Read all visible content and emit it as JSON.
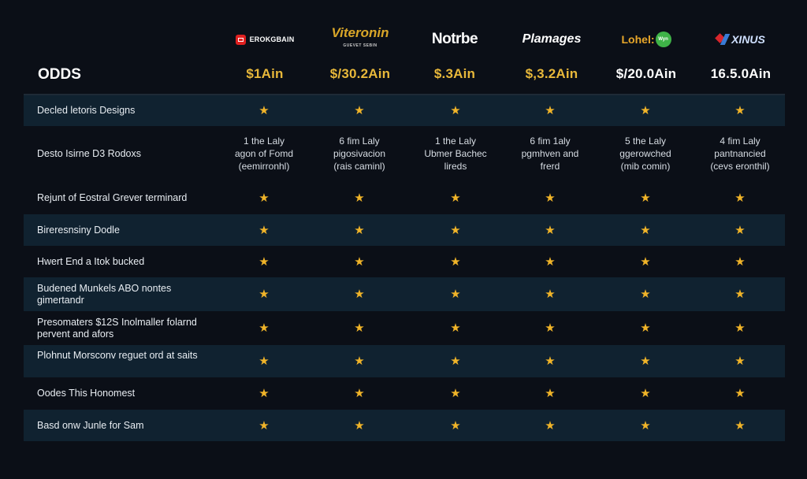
{
  "header": {
    "odds_label": "ODDS",
    "sites": [
      {
        "name": "EROKGBAIN",
        "logo_style": "red-square-badge",
        "price": "$1Ain",
        "price_color": "#e8b83a"
      },
      {
        "name": "Viteronin",
        "subtitle": "GUEVET SEBIN",
        "logo_style": "gold-italic-arc",
        "price": "$/30.2Ain",
        "price_color": "#e8b83a"
      },
      {
        "name": "Notrbe",
        "logo_style": "white-bold",
        "price": "$.3Ain",
        "price_color": "#e8b83a"
      },
      {
        "name": "Plamages",
        "logo_style": "white-italic",
        "price": "$,3.2Ain",
        "price_color": "#e8b83a"
      },
      {
        "name": "Lohel:",
        "badge": "Wyn",
        "logo_style": "orange-with-green-circle",
        "price": "$/20.0Ain",
        "price_color": "#ffffff"
      },
      {
        "name": "XINUS",
        "logo_style": "red-blue-mark",
        "price": "16.5.0Ain",
        "price_color": "#ffffff"
      }
    ]
  },
  "colors": {
    "background": "#0b0f17",
    "shaded_row": "#102230",
    "star": "#f0b429",
    "price_gold": "#e8b83a"
  },
  "rows": [
    {
      "label": "Decled letoris Designs",
      "shaded": true,
      "type": "stars",
      "cells": [
        "★",
        "★",
        "★",
        "★",
        "★",
        "★"
      ]
    },
    {
      "label": "Desto Isirne D3 Rodoxs",
      "shaded": false,
      "type": "text",
      "cells": [
        "1 the Laly\nagon of Fomd\n(eemirronhl)",
        "6 fim Laly\npigosivacion\n(rais caminl)",
        "1 the Laly\nUbmer Bachec\nlireds",
        "6 fim 1aly\npgmhven and\nfrerd",
        "5 the Laly\nggerowched\n(mib comin)",
        "4 fim Laly\npantnancied\n(cevs eronthil)"
      ]
    },
    {
      "label": "Rejunt of Eostral Grever terminard",
      "shaded": false,
      "type": "stars",
      "cells": [
        "★",
        "★",
        "★",
        "★",
        "★",
        "★"
      ]
    },
    {
      "label": "Bireresnsiny Dodle",
      "shaded": true,
      "type": "stars",
      "cells": [
        "★",
        "★",
        "★",
        "★",
        "★",
        "★"
      ]
    },
    {
      "label": "Hwert End a Itok bucked",
      "shaded": false,
      "type": "stars",
      "cells": [
        "★",
        "★",
        "★",
        "★",
        "★",
        "★"
      ]
    },
    {
      "label": "Budened Munkels ABO nontes gimertandr",
      "shaded": true,
      "type": "stars",
      "cells": [
        "★",
        "★",
        "★",
        "★",
        "★",
        "★"
      ]
    },
    {
      "label": "Presomaters $12S Inolmaller folarnd pervent and afors",
      "shaded": false,
      "type": "stars",
      "cells": [
        "★",
        "★",
        "★",
        "★",
        "★",
        "★"
      ]
    },
    {
      "label": "Plohnut Morsconv reguet ord at saits",
      "shaded": true,
      "type": "stars",
      "cells": [
        "★",
        "★",
        "★",
        "★",
        "★",
        "★"
      ]
    },
    {
      "label": "Oodes This Honomest",
      "shaded": false,
      "type": "stars",
      "cells": [
        "★",
        "★",
        "★",
        "★",
        "★",
        "★"
      ]
    },
    {
      "label": "Basd onw Junle for Sam",
      "shaded": true,
      "type": "stars",
      "cells": [
        "★",
        "★",
        "★",
        "★",
        "★",
        "★"
      ]
    }
  ]
}
